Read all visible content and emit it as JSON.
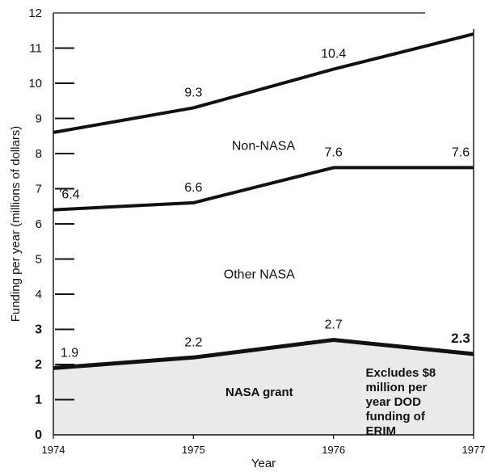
{
  "chart_data": {
    "type": "line",
    "title": "",
    "xlabel": "Year",
    "ylabel": "Funding per year (millions of dollars)",
    "xlim": [
      1974,
      1977
    ],
    "ylim": [
      0,
      12
    ],
    "x": [
      1974,
      1975,
      1976,
      1977
    ],
    "x_tick_labels": [
      "1974",
      "1975",
      "1976",
      "1977"
    ],
    "y_ticks": [
      0,
      1,
      2,
      3,
      4,
      5,
      6,
      7,
      8,
      9,
      10,
      11,
      12
    ],
    "y_tick_labels": [
      "0",
      "1",
      "2",
      "3",
      "4",
      "5",
      "6",
      "7",
      "8",
      "9",
      "10",
      "11",
      "12"
    ],
    "series": [
      {
        "values": [
          8.6,
          9.3,
          10.4,
          11.4
        ],
        "value_labels": [
          "",
          "9.3",
          "10.4",
          ""
        ]
      },
      {
        "values": [
          6.4,
          6.6,
          7.6,
          7.6
        ],
        "value_labels": [
          "'6.4",
          "6.6",
          "7.6",
          "7.6"
        ]
      },
      {
        "values": [
          1.9,
          2.2,
          2.7,
          2.3
        ],
        "value_labels": [
          "1.9",
          "2.2",
          "2.7",
          "2.3"
        ]
      }
    ],
    "region_labels": [
      "Non-NASA",
      "Other NASA",
      "NASA grant"
    ],
    "annotation": [
      "Excludes $8",
      "million per",
      "year DOD",
      "funding of",
      "ERIM"
    ],
    "grid": false,
    "colors": {
      "line": "#111111",
      "shade": "#d9d9d9"
    }
  }
}
